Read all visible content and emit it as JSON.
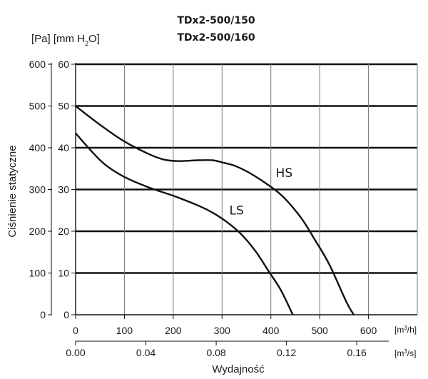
{
  "chart_data": {
    "type": "line",
    "title_lines": [
      "TDx2-500/150",
      "TDx2-500/160"
    ],
    "ylabel": "Ciśnienie statyczne",
    "y_units_label": "[Pa] [mm H2O]",
    "xlabel": "Wydajność",
    "x_unit_primary": "[m3/h]",
    "x_unit_secondary": "[m3/s]",
    "xlim": [
      0,
      700
    ],
    "ylim": [
      0,
      600
    ],
    "x_ticks_primary": [
      "0",
      "100",
      "200",
      "300",
      "400",
      "500",
      "600"
    ],
    "x_ticks_secondary": [
      "0.00",
      "0.04",
      "0.08",
      "0.12",
      "0.16"
    ],
    "x_ticks_secondary_values": [
      0.0,
      0.04,
      0.08,
      0.12,
      0.16
    ],
    "y_ticks_pa": [
      "0",
      "100",
      "200",
      "300",
      "400",
      "500",
      "600"
    ],
    "y_ticks_mmh2o": [
      "0",
      "10",
      "20",
      "30",
      "40",
      "50",
      "60"
    ],
    "grid": true,
    "series": [
      {
        "name": "HS",
        "x": [
          0,
          50,
          100,
          150,
          180,
          210,
          250,
          280,
          300,
          330,
          370,
          420,
          460,
          490,
          520,
          555,
          570
        ],
        "y": [
          500,
          455,
          415,
          385,
          372,
          368,
          370,
          370,
          365,
          355,
          330,
          288,
          235,
          180,
          120,
          30,
          0
        ]
      },
      {
        "name": "LS",
        "x": [
          0,
          30,
          60,
          100,
          150,
          200,
          250,
          280,
          310,
          340,
          370,
          395,
          420,
          445
        ],
        "y": [
          435,
          395,
          360,
          330,
          305,
          285,
          262,
          245,
          222,
          192,
          150,
          105,
          60,
          0
        ]
      }
    ],
    "label_positions": {
      "HS": [
        410,
        330
      ],
      "LS": [
        315,
        240
      ]
    }
  }
}
